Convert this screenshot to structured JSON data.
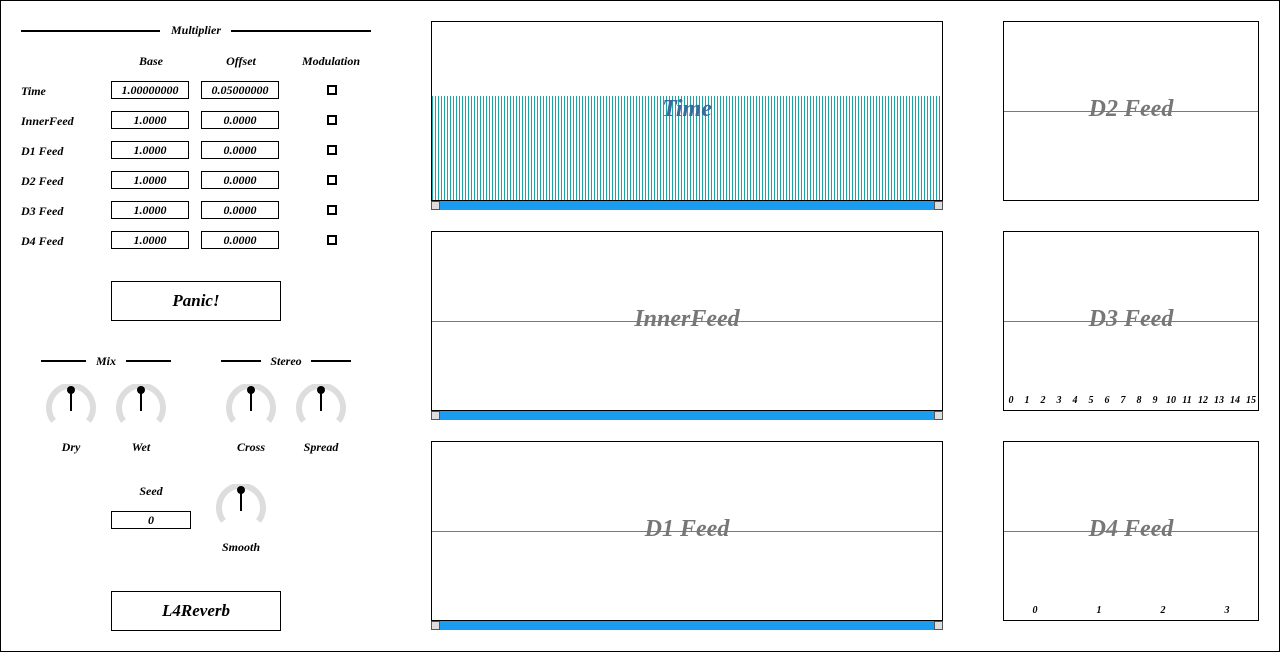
{
  "multiplier": {
    "title": "Multiplier",
    "col_base": "Base",
    "col_offset": "Offset",
    "col_modulation": "Modulation",
    "rows": [
      {
        "label": "Time",
        "base": "1.00000000",
        "offset": "0.05000000"
      },
      {
        "label": "InnerFeed",
        "base": "1.0000",
        "offset": "0.0000"
      },
      {
        "label": "D1 Feed",
        "base": "1.0000",
        "offset": "0.0000"
      },
      {
        "label": "D2 Feed",
        "base": "1.0000",
        "offset": "0.0000"
      },
      {
        "label": "D3 Feed",
        "base": "1.0000",
        "offset": "0.0000"
      },
      {
        "label": "D4 Feed",
        "base": "1.0000",
        "offset": "0.0000"
      }
    ]
  },
  "panic_label": "Panic!",
  "mix": {
    "title": "Mix",
    "dry": "Dry",
    "wet": "Wet"
  },
  "stereo": {
    "title": "Stereo",
    "cross": "Cross",
    "spread": "Spread"
  },
  "seed": {
    "label": "Seed",
    "value": "0"
  },
  "smooth_label": "Smooth",
  "plugin_name": "L4Reverb",
  "panels": {
    "time": "Time",
    "innerfeed": "InnerFeed",
    "d1": "D1 Feed",
    "d2": "D2 Feed",
    "d3": "D3 Feed",
    "d4": "D4 Feed"
  },
  "d3_ticks": [
    "0",
    "1",
    "2",
    "3",
    "4",
    "5",
    "6",
    "7",
    "8",
    "9",
    "10",
    "11",
    "12",
    "13",
    "14",
    "15"
  ],
  "d4_ticks": [
    "0",
    "1",
    "2",
    "3"
  ],
  "colors": {
    "bars": "#1ba5a5",
    "scroll_thumb": "#1a9df0",
    "knob_track": "#dddddd"
  }
}
